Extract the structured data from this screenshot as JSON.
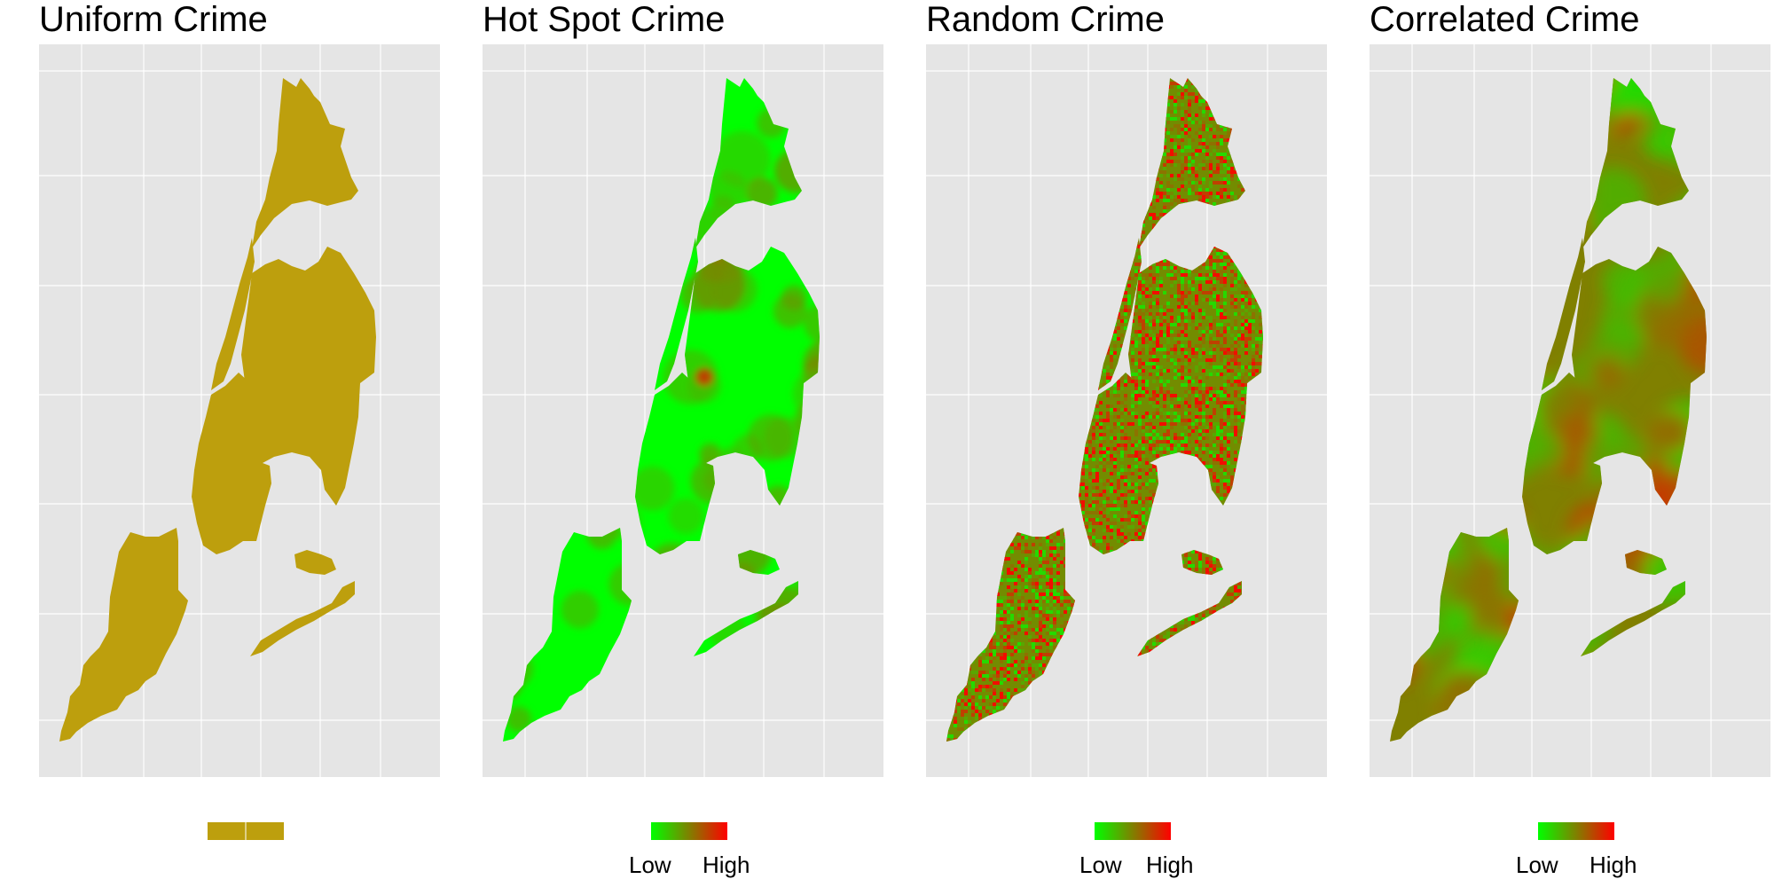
{
  "chart_data": [
    {
      "type": "heatmap",
      "title": "Uniform Crime",
      "pattern": "uniform",
      "colors": {
        "low": "#00ff00",
        "high": "#ff0000",
        "uniform": "#bd9f0d"
      },
      "legend": {
        "low_label": "",
        "high_label": ""
      },
      "grid": true
    },
    {
      "type": "heatmap",
      "title": "Hot Spot Crime",
      "pattern": "hotspot",
      "colors": {
        "low": "#00ff00",
        "high": "#ff0000"
      },
      "legend": {
        "low_label": "Low",
        "high_label": "High"
      },
      "grid": true
    },
    {
      "type": "heatmap",
      "title": "Random Crime",
      "pattern": "random",
      "colors": {
        "low": "#00ff00",
        "high": "#ff0000"
      },
      "legend": {
        "low_label": "Low",
        "high_label": "High"
      },
      "grid": true
    },
    {
      "type": "heatmap",
      "title": "Correlated Crime",
      "pattern": "correlated",
      "colors": {
        "low": "#00ff00",
        "high": "#ff0000"
      },
      "legend": {
        "low_label": "Low",
        "high_label": "High"
      },
      "grid": true
    }
  ],
  "style": {
    "panel_background": "#e5e5e5",
    "gridline": "#ffffff"
  }
}
